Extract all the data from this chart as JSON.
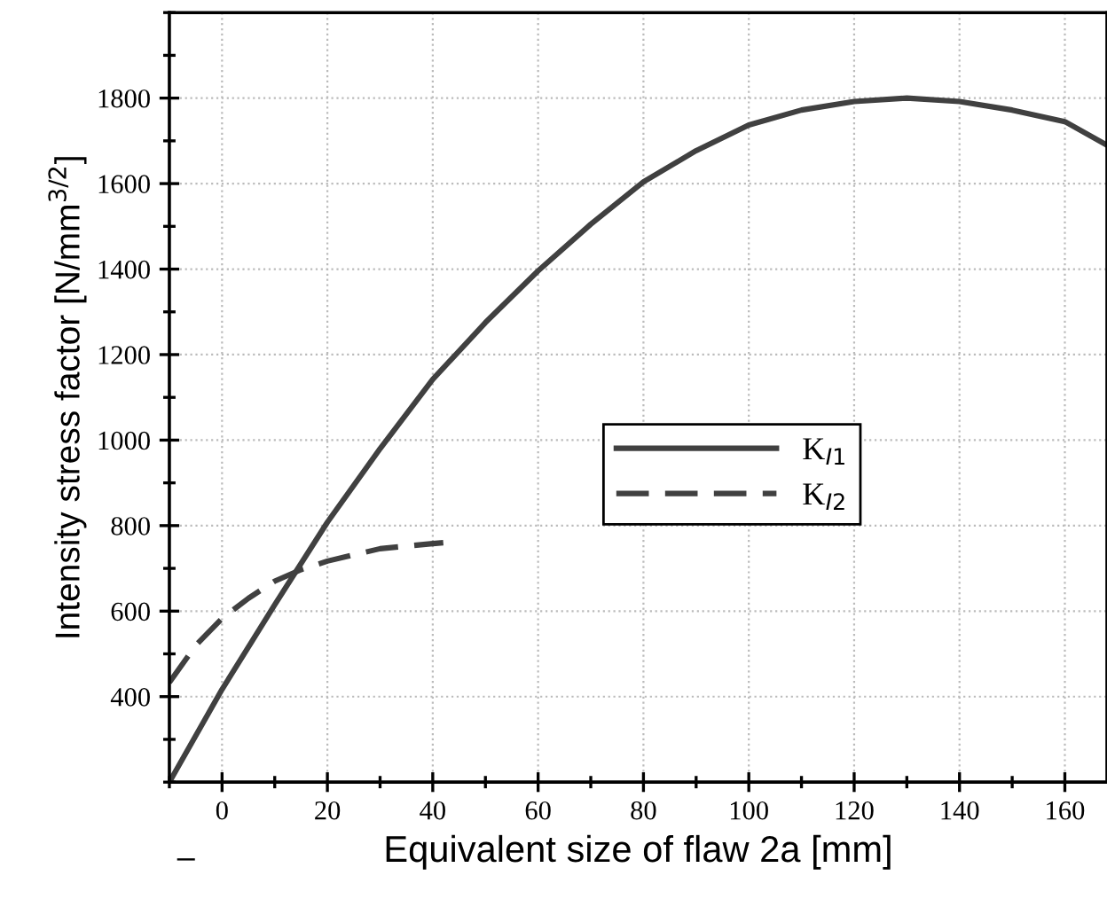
{
  "chart_data": {
    "type": "line",
    "xlabel": "Equivalent size of flaw 2a [mm]",
    "ylabel": "Intensity stress factor [N/mm$^{3/2}$]",
    "xlim": [
      -10,
      168
    ],
    "ylim": [
      200,
      2000
    ],
    "xticks": [
      0,
      20,
      40,
      60,
      80,
      100,
      120,
      140,
      160
    ],
    "yticks": [
      400,
      600,
      800,
      1000,
      1200,
      1400,
      1600,
      1800
    ],
    "grid": true,
    "legend": "center",
    "marker": "none",
    "series": [
      {
        "name": "K$_{I1}$",
        "color": "#404040",
        "line_style": "solid",
        "x": [
          -10,
          0,
          10,
          20,
          30,
          40,
          50,
          60,
          70,
          80,
          90,
          100,
          110,
          120,
          130,
          140,
          150,
          160,
          168
        ],
        "values": [
          200,
          417,
          615,
          808,
          980,
          1142,
          1275,
          1396,
          1505,
          1604,
          1677,
          1737,
          1772,
          1792,
          1800,
          1792,
          1772,
          1745,
          1690
        ]
      },
      {
        "name": "K$_{I2}$",
        "color": "#404040",
        "line_style": "dashed",
        "x": [
          -10,
          -5,
          0,
          5,
          10,
          15,
          20,
          30,
          40,
          42
        ],
        "values": [
          433,
          520,
          583,
          630,
          670,
          697,
          717,
          746,
          758,
          760
        ]
      }
    ],
    "annotations": [
      "–"
    ]
  }
}
